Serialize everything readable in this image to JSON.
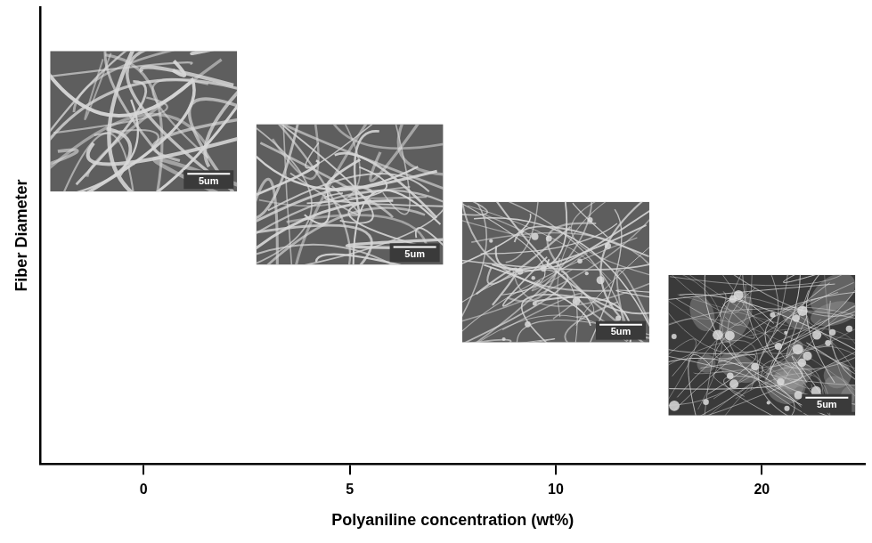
{
  "chart_data": {
    "type": "scatter",
    "x_label": "Polyaniline concentration (wt%)",
    "y_label": "Fiber Diameter",
    "categories": [
      "0",
      "5",
      "10",
      "20"
    ],
    "values": [
      75,
      59,
      42,
      26
    ],
    "marker": "sem_image",
    "image_labels": [
      "5um",
      "5um",
      "5um",
      "5um"
    ],
    "ylim": [
      0,
      100
    ],
    "yticks": [],
    "tick_labels": "x",
    "grid": false
  }
}
